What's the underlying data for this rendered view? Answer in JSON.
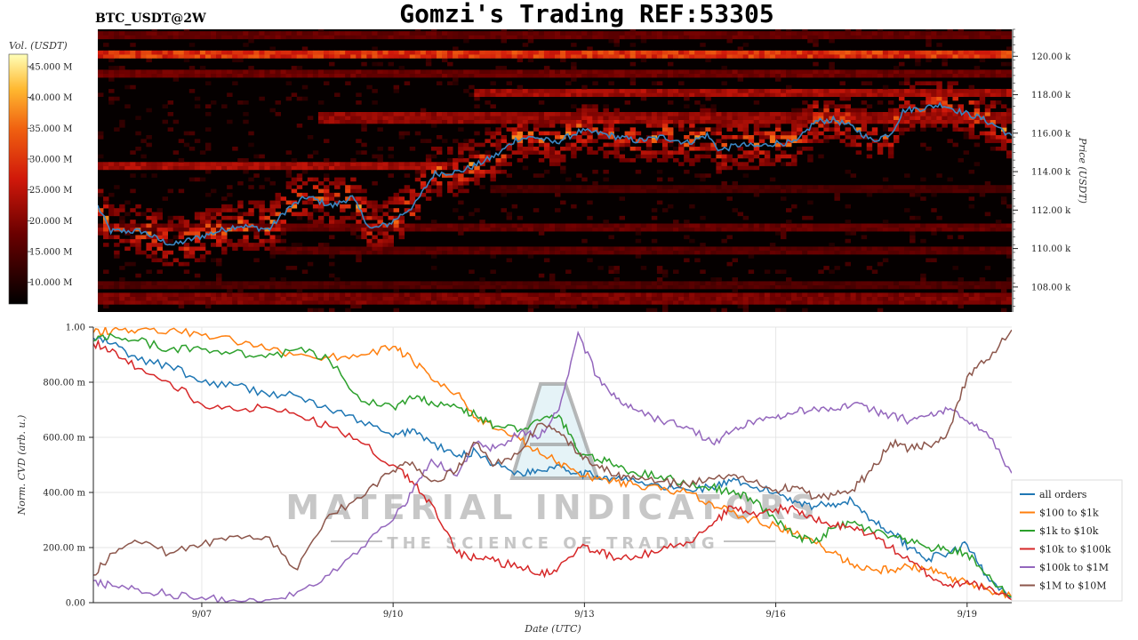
{
  "header": {
    "symbol": "BTC_USDT@2W",
    "title": "Gomzi's Trading REF:53305"
  },
  "watermark": {
    "main": "MATERIAL INDICATORS",
    "sub": "THE SCIENCE OF TRADING"
  },
  "chart_data": [
    {
      "type": "heatmap",
      "title": "Gomzi's Trading REF:53305",
      "ylabel": "Price (USDT)",
      "colorbar_label": "Vol. (USDT)",
      "colorbar_ticks": [
        "10.000 M",
        "15.000 M",
        "20.000 M",
        "25.000 M",
        "30.000 M",
        "35.000 M",
        "40.000 M",
        "45.000 M"
      ],
      "colorbar_values": [
        10,
        15,
        20,
        25,
        30,
        35,
        40,
        45
      ],
      "colorbar_range": [
        6.5,
        47
      ],
      "price_ticks": [
        "108.00 k",
        "110.00 k",
        "112.00 k",
        "114.00 k",
        "116.00 k",
        "118.00 k",
        "120.00 k"
      ],
      "price_values": [
        108000,
        110000,
        112000,
        114000,
        116000,
        118000,
        120000
      ],
      "ylim": [
        106700,
        121400
      ],
      "x_range_days": [
        5.3,
        19.7
      ],
      "price_line": {
        "color": "#3a86c2",
        "x": [
          5.3,
          5.5,
          6.0,
          6.3,
          6.5,
          7.0,
          7.5,
          8.0,
          8.3,
          8.6,
          9.0,
          9.3,
          9.6,
          9.9,
          10.3,
          10.6,
          11.0,
          11.3,
          11.6,
          11.9,
          12.2,
          12.5,
          12.9,
          13.2,
          13.5,
          13.8,
          14.2,
          14.6,
          14.9,
          15.1,
          15.4,
          15.7,
          16.0,
          16.3,
          16.6,
          16.9,
          17.2,
          17.5,
          17.8,
          18.0,
          18.3,
          18.6,
          18.9,
          19.2,
          19.5,
          19.7
        ],
        "y": [
          112200,
          110900,
          110900,
          110400,
          110200,
          110700,
          111200,
          111000,
          112100,
          112700,
          112200,
          112700,
          111000,
          111300,
          112300,
          113900,
          114000,
          114400,
          114900,
          115700,
          115800,
          115500,
          116100,
          116000,
          115800,
          115600,
          115800,
          115500,
          115900,
          115100,
          115400,
          115300,
          115500,
          115500,
          116600,
          116700,
          116300,
          115600,
          116000,
          117200,
          117300,
          117500,
          117100,
          116800,
          116300,
          115800
        ]
      }
    },
    {
      "type": "line",
      "title": "",
      "xlabel": "Date (UTC)",
      "ylabel": "Norm. CVD (arb. u.)",
      "ylim": [
        0,
        1
      ],
      "xlim": [
        5.3,
        19.7
      ],
      "y_ticks": [
        "0.00",
        "200.00 m",
        "400.00 m",
        "600.00 m",
        "800.00 m",
        "1.00"
      ],
      "y_tick_values": [
        0,
        0.2,
        0.4,
        0.6,
        0.8,
        1.0
      ],
      "x_ticks": [
        "9/07",
        "9/10",
        "9/13",
        "9/16",
        "9/19"
      ],
      "x_tick_values": [
        7,
        10,
        13,
        16,
        19
      ],
      "x": [
        5.3,
        5.6,
        6.0,
        6.5,
        7.0,
        7.5,
        8.0,
        8.5,
        9.0,
        9.5,
        10.0,
        10.3,
        10.6,
        11.0,
        11.3,
        11.6,
        12.0,
        12.3,
        12.6,
        12.9,
        13.2,
        13.5,
        13.8,
        14.2,
        14.6,
        15.0,
        15.3,
        15.6,
        16.0,
        16.3,
        16.6,
        16.9,
        17.2,
        17.5,
        17.8,
        18.1,
        18.4,
        18.7,
        19.0,
        19.3,
        19.7
      ],
      "series": [
        {
          "name": "all orders",
          "color": "#1f77b4",
          "values": [
            0.96,
            0.94,
            0.88,
            0.86,
            0.8,
            0.79,
            0.76,
            0.75,
            0.7,
            0.66,
            0.6,
            0.63,
            0.58,
            0.53,
            0.55,
            0.5,
            0.47,
            0.48,
            0.5,
            0.47,
            0.46,
            0.45,
            0.44,
            0.42,
            0.41,
            0.42,
            0.44,
            0.42,
            0.4,
            0.37,
            0.35,
            0.36,
            0.37,
            0.3,
            0.26,
            0.2,
            0.16,
            0.18,
            0.21,
            0.1,
            0.02
          ]
        },
        {
          "name": "$100 to $1k",
          "color": "#ff7f0e",
          "values": [
            0.98,
            0.99,
            0.99,
            0.99,
            0.97,
            0.95,
            0.92,
            0.9,
            0.89,
            0.9,
            0.93,
            0.88,
            0.81,
            0.76,
            0.67,
            0.63,
            0.59,
            0.54,
            0.51,
            0.47,
            0.45,
            0.44,
            0.43,
            0.41,
            0.4,
            0.36,
            0.33,
            0.3,
            0.28,
            0.25,
            0.22,
            0.18,
            0.14,
            0.12,
            0.12,
            0.13,
            0.12,
            0.09,
            0.07,
            0.05,
            0.02
          ]
        },
        {
          "name": "$1k to $10k",
          "color": "#2ca02c",
          "values": [
            0.95,
            0.97,
            0.95,
            0.92,
            0.92,
            0.91,
            0.89,
            0.92,
            0.88,
            0.73,
            0.71,
            0.74,
            0.73,
            0.71,
            0.68,
            0.64,
            0.63,
            0.66,
            0.68,
            0.55,
            0.52,
            0.5,
            0.47,
            0.46,
            0.43,
            0.42,
            0.4,
            0.38,
            0.3,
            0.24,
            0.22,
            0.27,
            0.29,
            0.26,
            0.24,
            0.22,
            0.2,
            0.19,
            0.18,
            0.1,
            0.02
          ]
        },
        {
          "name": "$10k to $100k",
          "color": "#d62728",
          "values": [
            0.94,
            0.92,
            0.85,
            0.8,
            0.72,
            0.7,
            0.71,
            0.68,
            0.64,
            0.58,
            0.5,
            0.44,
            0.36,
            0.18,
            0.16,
            0.15,
            0.13,
            0.1,
            0.13,
            0.2,
            0.19,
            0.16,
            0.17,
            0.19,
            0.22,
            0.28,
            0.35,
            0.32,
            0.34,
            0.34,
            0.3,
            0.28,
            0.27,
            0.25,
            0.2,
            0.15,
            0.1,
            0.06,
            0.08,
            0.05,
            0.01
          ]
        },
        {
          "name": "$100k to $1M",
          "color": "#9467bd",
          "values": [
            0.08,
            0.06,
            0.05,
            0.03,
            0.02,
            0.01,
            0.01,
            0.04,
            0.1,
            0.2,
            0.3,
            0.4,
            0.52,
            0.46,
            0.58,
            0.56,
            0.62,
            0.6,
            0.7,
            0.98,
            0.82,
            0.74,
            0.7,
            0.66,
            0.64,
            0.58,
            0.62,
            0.66,
            0.67,
            0.69,
            0.71,
            0.7,
            0.72,
            0.7,
            0.68,
            0.66,
            0.68,
            0.7,
            0.66,
            0.62,
            0.47
          ]
        },
        {
          "name": "$1M to $10M",
          "color": "#8c564b",
          "values": [
            0.1,
            0.18,
            0.22,
            0.18,
            0.21,
            0.24,
            0.24,
            0.12,
            0.32,
            0.38,
            0.48,
            0.51,
            0.44,
            0.48,
            0.58,
            0.5,
            0.55,
            0.65,
            0.62,
            0.54,
            0.5,
            0.46,
            0.45,
            0.44,
            0.43,
            0.45,
            0.46,
            0.44,
            0.41,
            0.42,
            0.38,
            0.39,
            0.41,
            0.48,
            0.58,
            0.56,
            0.57,
            0.62,
            0.82,
            0.88,
            0.99
          ]
        }
      ]
    }
  ]
}
